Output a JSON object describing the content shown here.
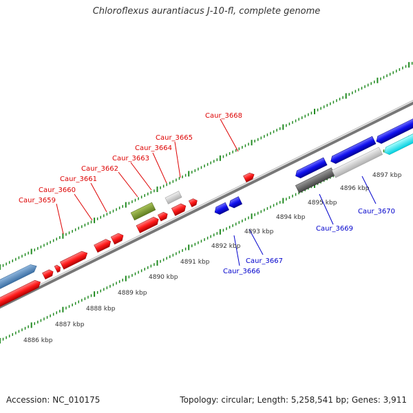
{
  "title": "Chloroflexus aurantiacus J-10-fl, complete genome",
  "footer": {
    "accession": "Accession: NC_010175",
    "topology": "Topology: circular; Length: 5,258,541 bp; Genes: 3,911"
  },
  "kbp_labels": [
    "4886 kbp",
    "4887 kbp",
    "4888 kbp",
    "4889 kbp",
    "4890 kbp",
    "4891 kbp",
    "4892 kbp",
    "4893 kbp",
    "4894 kbp",
    "4895 kbp",
    "4896 kbp",
    "4897 kbp"
  ],
  "top_gene_labels": [
    "Caur_3659",
    "Caur_3660",
    "Caur_3661",
    "Caur_3662",
    "Caur_3663",
    "Caur_3664",
    "Caur_3665",
    "Caur_3668"
  ],
  "bottom_gene_labels": [
    "Caur_3666",
    "Caur_3667",
    "Caur_3669",
    "Caur_3670"
  ],
  "colors": {
    "forward_gene": "#ff0000",
    "reverse_gene": "#1a1aee",
    "top_label": "#dd0000",
    "bottom_label": "#0000cc",
    "backbone": "#888888",
    "ticks": "#228b22"
  }
}
